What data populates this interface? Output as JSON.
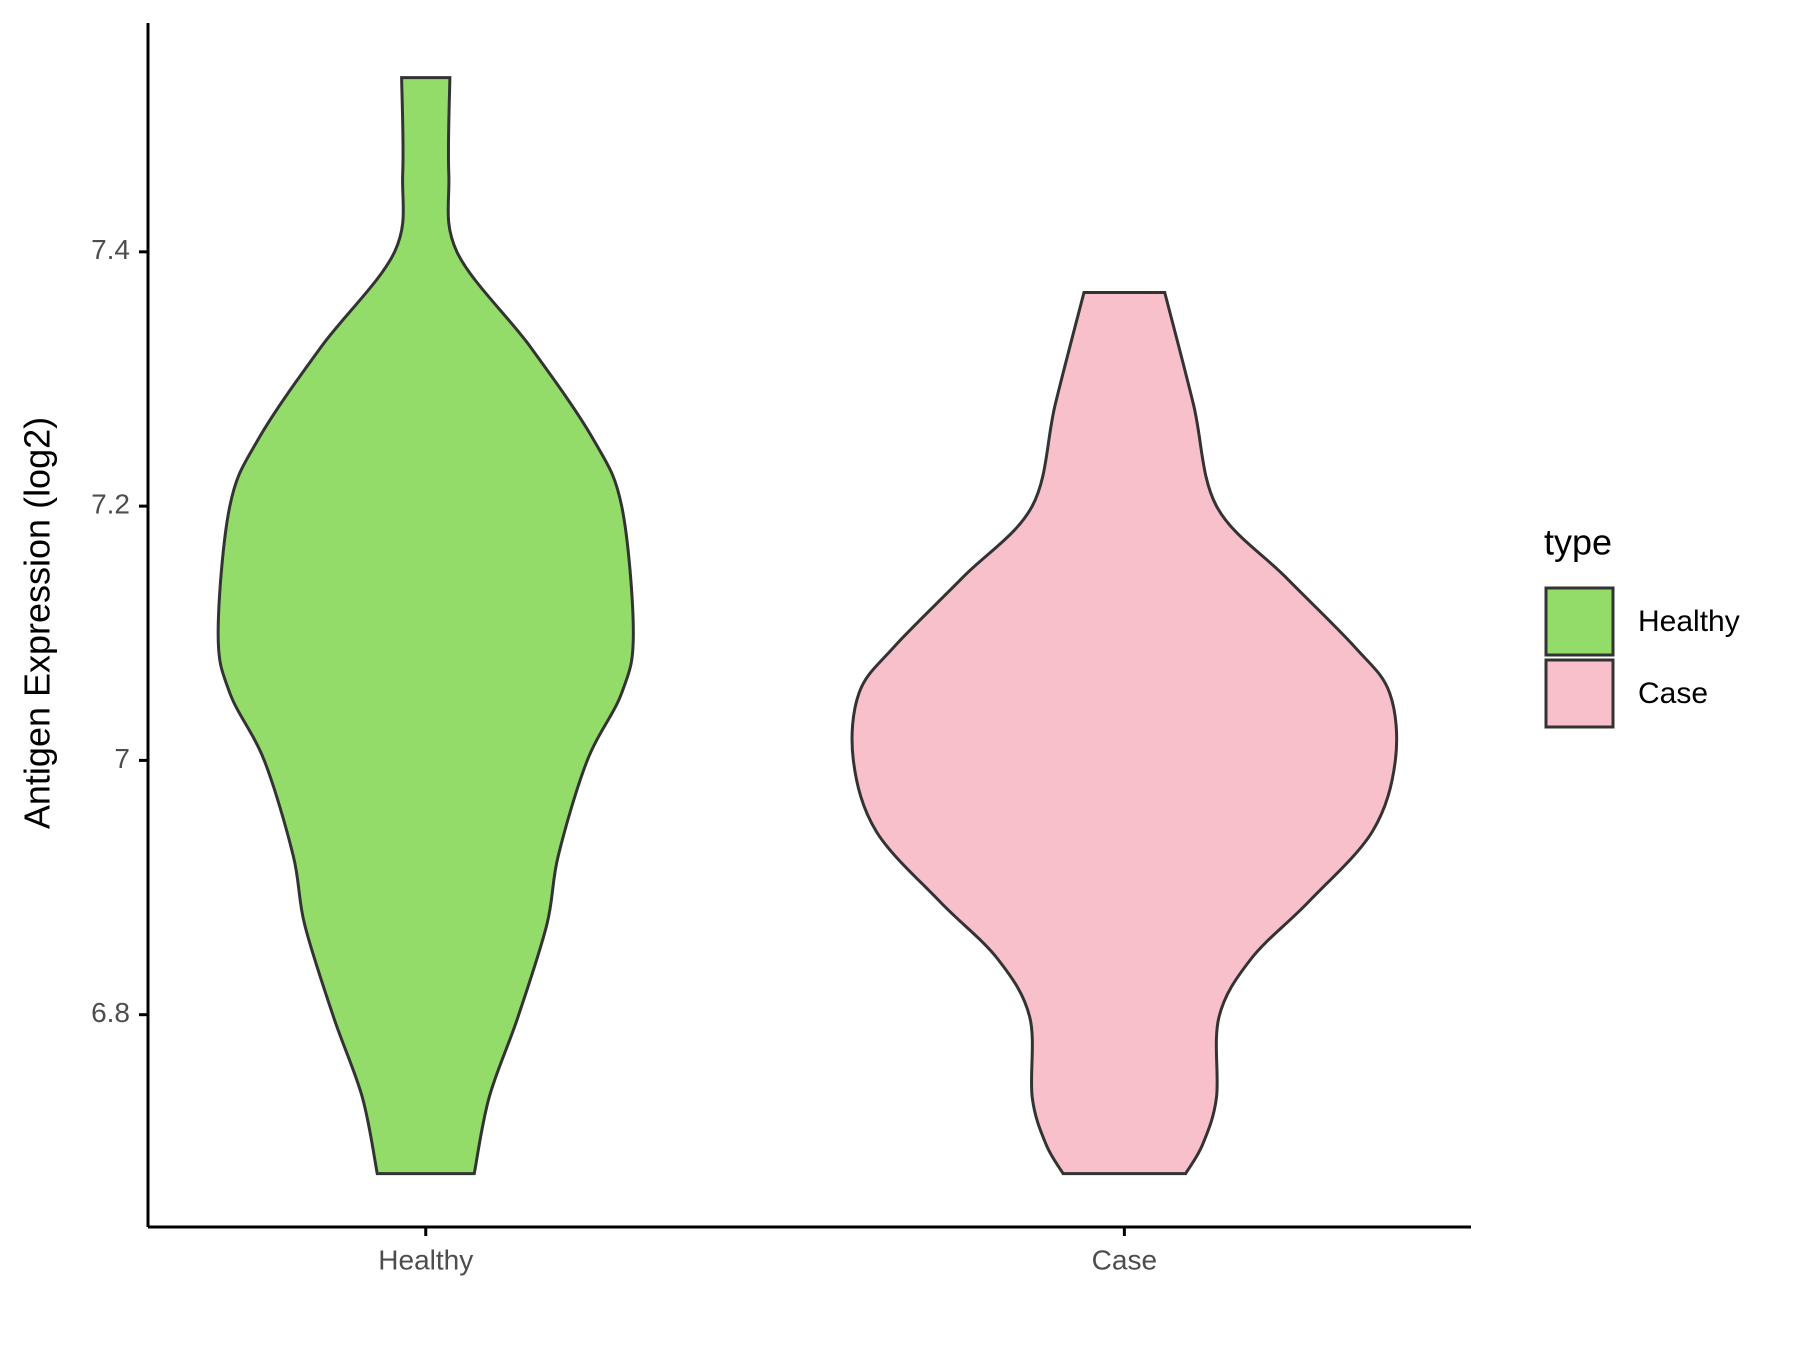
{
  "chart_data": {
    "type": "violin",
    "y_label": "Antigen Expression (log2)",
    "categories": [
      "Healthy",
      "Case"
    ],
    "ylim": [
      6.633,
      7.58
    ],
    "yticks": [
      6.8,
      7.0,
      7.2,
      7.4
    ],
    "legend_title": "type",
    "legend_position": "right",
    "series": [
      {
        "name": "Healthy",
        "color": "#93dc6a",
        "y": [
          7.537,
          7.462,
          7.4,
          7.325,
          7.253,
          7.2,
          7.1,
          7.053,
          7.0,
          6.925,
          6.871,
          6.798,
          6.735,
          6.675
        ],
        "density": [
          0.089,
          0.085,
          0.115,
          0.387,
          0.617,
          0.723,
          0.766,
          0.723,
          0.596,
          0.489,
          0.447,
          0.34,
          0.234,
          0.179
        ]
      },
      {
        "name": "Case",
        "color": "#f7c0cb",
        "y": [
          7.368,
          7.28,
          7.2,
          7.144,
          7.089,
          7.053,
          7.0,
          6.944,
          6.889,
          6.844,
          6.798,
          6.735,
          6.698,
          6.675
        ],
        "density": [
          0.149,
          0.255,
          0.34,
          0.596,
          0.851,
          0.979,
          1,
          0.915,
          0.681,
          0.468,
          0.349,
          0.34,
          0.289,
          0.226
        ]
      }
    ]
  }
}
